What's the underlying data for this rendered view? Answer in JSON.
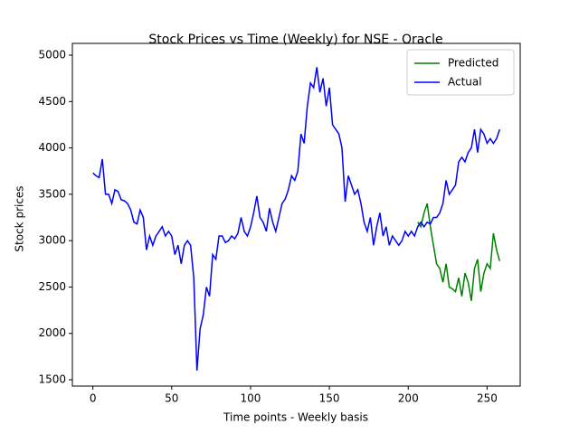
{
  "chart_data": {
    "type": "line",
    "title": "Stock Prices vs Time (Weekly) for NSE - Oracle",
    "xlabel": "Time points - Weekly basis",
    "ylabel": "Stock prices",
    "x": [
      0,
      2,
      4,
      6,
      8,
      10,
      12,
      14,
      16,
      18,
      20,
      22,
      24,
      26,
      28,
      30,
      32,
      34,
      36,
      38,
      40,
      42,
      44,
      46,
      48,
      50,
      52,
      54,
      56,
      58,
      60,
      62,
      64,
      66,
      68,
      70,
      72,
      74,
      76,
      78,
      80,
      82,
      84,
      86,
      88,
      90,
      92,
      94,
      96,
      98,
      100,
      102,
      104,
      106,
      108,
      110,
      112,
      114,
      116,
      118,
      120,
      122,
      124,
      126,
      128,
      130,
      132,
      134,
      136,
      138,
      140,
      142,
      144,
      146,
      148,
      150,
      152,
      154,
      156,
      158,
      160,
      162,
      164,
      166,
      168,
      170,
      172,
      174,
      176,
      178,
      180,
      182,
      184,
      186,
      188,
      190,
      192,
      194,
      196,
      198,
      200,
      202,
      204,
      206,
      208,
      210,
      212,
      214,
      216,
      218,
      220,
      222,
      224,
      226,
      228,
      230,
      232,
      234,
      236,
      238,
      240,
      242,
      244,
      246,
      248,
      250,
      252,
      254,
      256,
      258
    ],
    "series": [
      {
        "name": "Predicted",
        "color": "#008000",
        "values": [
          null,
          null,
          null,
          null,
          null,
          null,
          null,
          null,
          null,
          null,
          null,
          null,
          null,
          null,
          null,
          null,
          null,
          null,
          null,
          null,
          null,
          null,
          null,
          null,
          null,
          null,
          null,
          null,
          null,
          null,
          null,
          null,
          null,
          null,
          null,
          null,
          null,
          null,
          null,
          null,
          null,
          null,
          null,
          null,
          null,
          null,
          null,
          null,
          null,
          null,
          null,
          null,
          null,
          null,
          null,
          null,
          null,
          null,
          null,
          null,
          null,
          null,
          null,
          null,
          null,
          null,
          null,
          null,
          null,
          null,
          null,
          null,
          null,
          null,
          null,
          null,
          null,
          null,
          null,
          null,
          null,
          null,
          null,
          null,
          null,
          null,
          null,
          null,
          null,
          null,
          null,
          null,
          null,
          null,
          null,
          null,
          null,
          null,
          null,
          null,
          null,
          null,
          null,
          3200,
          3150,
          3300,
          3400,
          3150,
          2950,
          2750,
          2700,
          2550,
          2750,
          2500,
          2480,
          2450,
          2600,
          2400,
          2650,
          2550,
          2350,
          2700,
          2800,
          2450,
          2650,
          2750,
          2700,
          3080,
          2900,
          2780
        ]
      },
      {
        "name": "Actual",
        "color": "#0000ff",
        "values": [
          3730,
          3700,
          3680,
          3880,
          3500,
          3500,
          3400,
          3550,
          3530,
          3440,
          3430,
          3400,
          3330,
          3200,
          3180,
          3330,
          3250,
          2900,
          3050,
          2950,
          3050,
          3100,
          3150,
          3050,
          3100,
          3050,
          2850,
          2950,
          2750,
          2950,
          3000,
          2950,
          2600,
          1600,
          2050,
          2200,
          2500,
          2400,
          2850,
          2800,
          3050,
          3050,
          2980,
          3000,
          3050,
          3020,
          3080,
          3250,
          3100,
          3050,
          3150,
          3300,
          3480,
          3250,
          3200,
          3100,
          3350,
          3200,
          3100,
          3250,
          3400,
          3450,
          3550,
          3700,
          3650,
          3750,
          4150,
          4050,
          4450,
          4700,
          4650,
          4870,
          4600,
          4750,
          4450,
          4650,
          4250,
          4200,
          4150,
          4000,
          3420,
          3700,
          3600,
          3500,
          3550,
          3400,
          3200,
          3100,
          3250,
          2950,
          3150,
          3300,
          3050,
          3150,
          2950,
          3050,
          3000,
          2950,
          3000,
          3100,
          3050,
          3100,
          3050,
          3150,
          3200,
          3150,
          3200,
          3180,
          3250,
          3250,
          3300,
          3400,
          3650,
          3500,
          3550,
          3600,
          3850,
          3900,
          3850,
          3950,
          4000,
          4200,
          3950,
          4200,
          4150,
          4050,
          4100,
          4050,
          4100,
          4200
        ]
      }
    ],
    "xlim": [
      -13,
      271
    ],
    "xticks": [
      0,
      50,
      100,
      150,
      200,
      250
    ],
    "ylim": [
      1432,
      5127
    ],
    "yticks": [
      1500,
      2000,
      2500,
      3000,
      3500,
      4000,
      4500,
      5000
    ],
    "legend": "upper right"
  }
}
